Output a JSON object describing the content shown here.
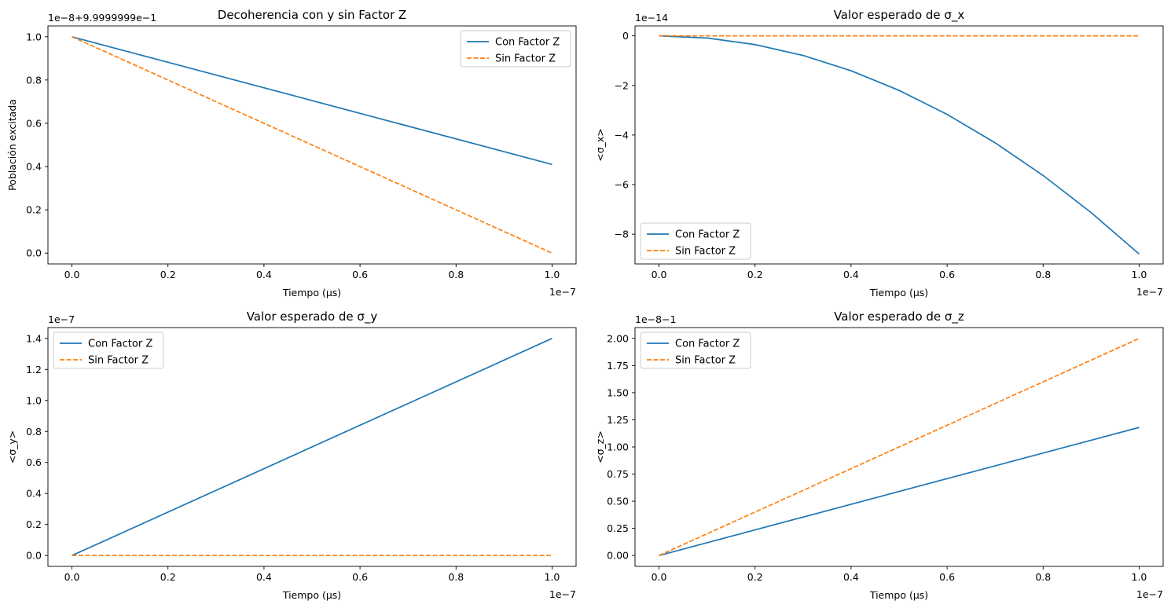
{
  "chart_data": [
    {
      "type": "line",
      "title": "Decoherencia con y sin Factor Z",
      "xlabel": "Tiempo (µs)",
      "ylabel": "Población excitada",
      "x_offset_text": "1e−7",
      "y_offset_text": "1e−8+9.9999999e−1",
      "xlim": [
        -0.05,
        1.05
      ],
      "ylim": [
        -0.05,
        1.05
      ],
      "xticks": [
        0.0,
        0.2,
        0.4,
        0.6,
        0.8,
        1.0
      ],
      "xtick_labels": [
        "0.0",
        "0.2",
        "0.4",
        "0.6",
        "0.8",
        "1.0"
      ],
      "yticks": [
        0.0,
        0.2,
        0.4,
        0.6,
        0.8,
        1.0
      ],
      "ytick_labels": [
        "0.0",
        "0.2",
        "0.4",
        "0.6",
        "0.8",
        "1.0"
      ],
      "legend_position": "upper-right",
      "series": [
        {
          "name": "Con Factor Z",
          "color": "#1f77b4",
          "style": "solid",
          "x": [
            0,
            1
          ],
          "y": [
            1.0,
            0.41
          ]
        },
        {
          "name": "Sin Factor Z",
          "color": "#ff7f0e",
          "style": "dashed",
          "x": [
            0,
            1
          ],
          "y": [
            1.0,
            0.0
          ]
        }
      ]
    },
    {
      "type": "line",
      "title": "Valor esperado de σ_x",
      "xlabel": "Tiempo (µs)",
      "ylabel": "<σ_x>",
      "x_offset_text": "1e−7",
      "y_offset_text": "1e−14",
      "xlim": [
        -0.05,
        1.05
      ],
      "ylim": [
        -9.2,
        0.4
      ],
      "xticks": [
        0.0,
        0.2,
        0.4,
        0.6,
        0.8,
        1.0
      ],
      "xtick_labels": [
        "0.0",
        "0.2",
        "0.4",
        "0.6",
        "0.8",
        "1.0"
      ],
      "yticks": [
        0,
        -2,
        -4,
        -6,
        -8
      ],
      "ytick_labels": [
        "0",
        "−2",
        "−4",
        "−6",
        "−8"
      ],
      "legend_position": "lower-left",
      "series": [
        {
          "name": "Con Factor Z",
          "color": "#1f77b4",
          "style": "solid",
          "x": [
            0,
            0.1,
            0.2,
            0.3,
            0.4,
            0.5,
            0.6,
            0.7,
            0.8,
            0.9,
            1.0
          ],
          "y": [
            0,
            -0.088,
            -0.352,
            -0.792,
            -1.408,
            -2.2,
            -3.168,
            -4.312,
            -5.632,
            -7.128,
            -8.8
          ]
        },
        {
          "name": "Sin Factor Z",
          "color": "#ff7f0e",
          "style": "dashed",
          "x": [
            0,
            1
          ],
          "y": [
            0,
            0
          ]
        }
      ]
    },
    {
      "type": "line",
      "title": "Valor esperado de σ_y",
      "xlabel": "Tiempo (µs)",
      "ylabel": "<σ_y>",
      "x_offset_text": "1e−7",
      "y_offset_text": "1e−7",
      "xlim": [
        -0.05,
        1.05
      ],
      "ylim": [
        -0.07,
        1.47
      ],
      "xticks": [
        0.0,
        0.2,
        0.4,
        0.6,
        0.8,
        1.0
      ],
      "xtick_labels": [
        "0.0",
        "0.2",
        "0.4",
        "0.6",
        "0.8",
        "1.0"
      ],
      "yticks": [
        0.0,
        0.2,
        0.4,
        0.6,
        0.8,
        1.0,
        1.2,
        1.4
      ],
      "ytick_labels": [
        "0.0",
        "0.2",
        "0.4",
        "0.6",
        "0.8",
        "1.0",
        "1.2",
        "1.4"
      ],
      "legend_position": "upper-left",
      "series": [
        {
          "name": "Con Factor Z",
          "color": "#1f77b4",
          "style": "solid",
          "x": [
            0,
            1
          ],
          "y": [
            0.0,
            1.4
          ]
        },
        {
          "name": "Sin Factor Z",
          "color": "#ff7f0e",
          "style": "dashed",
          "x": [
            0,
            1
          ],
          "y": [
            0.0,
            0.0
          ]
        }
      ]
    },
    {
      "type": "line",
      "title": "Valor esperado de σ_z",
      "xlabel": "Tiempo (µs)",
      "ylabel": "<σ_z>",
      "x_offset_text": "1e−7",
      "y_offset_text": "1e−8−1",
      "xlim": [
        -0.05,
        1.05
      ],
      "ylim": [
        -0.1,
        2.1
      ],
      "xticks": [
        0.0,
        0.2,
        0.4,
        0.6,
        0.8,
        1.0
      ],
      "xtick_labels": [
        "0.0",
        "0.2",
        "0.4",
        "0.6",
        "0.8",
        "1.0"
      ],
      "yticks": [
        0.0,
        0.25,
        0.5,
        0.75,
        1.0,
        1.25,
        1.5,
        1.75,
        2.0
      ],
      "ytick_labels": [
        "0.00",
        "0.25",
        "0.50",
        "0.75",
        "1.00",
        "1.25",
        "1.50",
        "1.75",
        "2.00"
      ],
      "legend_position": "upper-left",
      "series": [
        {
          "name": "Con Factor Z",
          "color": "#1f77b4",
          "style": "solid",
          "x": [
            0,
            1
          ],
          "y": [
            0.0,
            1.18
          ]
        },
        {
          "name": "Sin Factor Z",
          "color": "#ff7f0e",
          "style": "dashed",
          "x": [
            0,
            1
          ],
          "y": [
            0.0,
            2.0
          ]
        }
      ]
    }
  ]
}
